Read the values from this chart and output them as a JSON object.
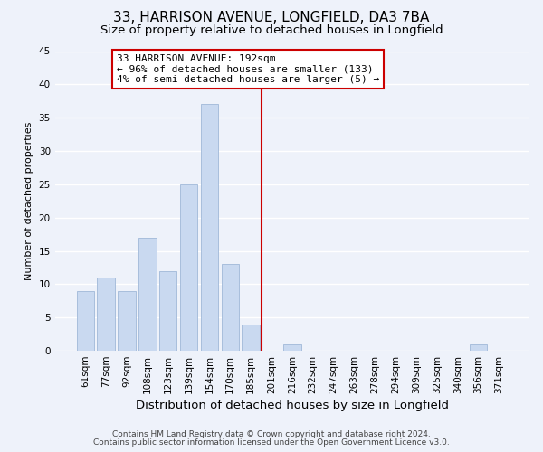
{
  "title": "33, HARRISON AVENUE, LONGFIELD, DA3 7BA",
  "subtitle": "Size of property relative to detached houses in Longfield",
  "xlabel": "Distribution of detached houses by size in Longfield",
  "ylabel": "Number of detached properties",
  "bar_labels": [
    "61sqm",
    "77sqm",
    "92sqm",
    "108sqm",
    "123sqm",
    "139sqm",
    "154sqm",
    "170sqm",
    "185sqm",
    "201sqm",
    "216sqm",
    "232sqm",
    "247sqm",
    "263sqm",
    "278sqm",
    "294sqm",
    "309sqm",
    "325sqm",
    "340sqm",
    "356sqm",
    "371sqm"
  ],
  "bar_heights": [
    9,
    11,
    9,
    17,
    12,
    25,
    37,
    13,
    4,
    0,
    1,
    0,
    0,
    0,
    0,
    0,
    0,
    0,
    0,
    1,
    0
  ],
  "bar_color": "#c9d9f0",
  "bar_edge_color": "#a0b8d8",
  "vline_x": 8.5,
  "vline_color": "#cc0000",
  "ylim": [
    0,
    45
  ],
  "yticks": [
    0,
    5,
    10,
    15,
    20,
    25,
    30,
    35,
    40,
    45
  ],
  "annotation_title": "33 HARRISON AVENUE: 192sqm",
  "annotation_line1": "← 96% of detached houses are smaller (133)",
  "annotation_line2": "4% of semi-detached houses are larger (5) →",
  "annotation_box_color": "#ffffff",
  "annotation_box_edge": "#cc0000",
  "footer_line1": "Contains HM Land Registry data © Crown copyright and database right 2024.",
  "footer_line2": "Contains public sector information licensed under the Open Government Licence v3.0.",
  "background_color": "#eef2fa",
  "grid_color": "#ffffff",
  "title_fontsize": 11,
  "subtitle_fontsize": 9.5,
  "xlabel_fontsize": 9.5,
  "ylabel_fontsize": 8,
  "tick_fontsize": 7.5,
  "annotation_fontsize": 8,
  "footer_fontsize": 6.5
}
